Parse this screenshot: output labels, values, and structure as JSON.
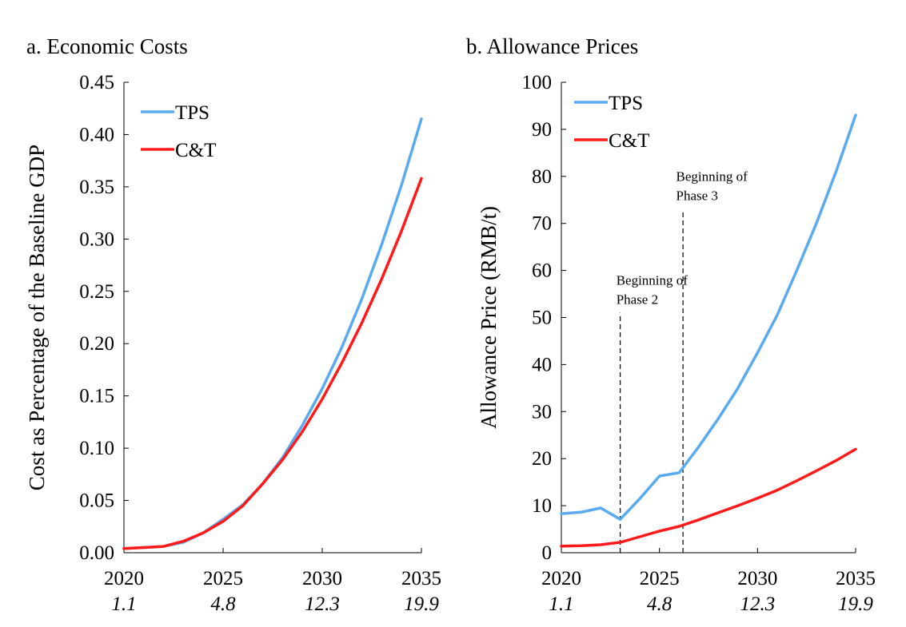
{
  "chart_data": [
    {
      "type": "line",
      "title": "a. Economic Costs",
      "xlabel": "",
      "ylabel": "Cost as Percentage of the Baseline GDP",
      "xlim": [
        2020,
        2035
      ],
      "ylim": [
        0,
        0.45
      ],
      "x_ticks": [
        {
          "value": 2020,
          "label": "2020",
          "sublabel": "1.1"
        },
        {
          "value": 2025,
          "label": "2025",
          "sublabel": "4.8"
        },
        {
          "value": 2030,
          "label": "2030",
          "sublabel": "12.3"
        },
        {
          "value": 2035,
          "label": "2035",
          "sublabel": "19.9"
        }
      ],
      "y_ticks": [
        {
          "value": 0,
          "label": "0.00"
        },
        {
          "value": 0.05,
          "label": "0.05"
        },
        {
          "value": 0.1,
          "label": "0.10"
        },
        {
          "value": 0.15,
          "label": "0.15"
        },
        {
          "value": 0.2,
          "label": "0.20"
        },
        {
          "value": 0.25,
          "label": "0.25"
        },
        {
          "value": 0.3,
          "label": "0.30"
        },
        {
          "value": 0.35,
          "label": "0.35"
        },
        {
          "value": 0.4,
          "label": "0.40"
        },
        {
          "value": 0.45,
          "label": "0.45"
        }
      ],
      "grid": false,
      "legend_position": "top-left",
      "x": [
        2020,
        2021,
        2022,
        2023,
        2024,
        2025,
        2026,
        2027,
        2028,
        2029,
        2030,
        2031,
        2032,
        2033,
        2034,
        2035
      ],
      "series": [
        {
          "name": "TPS",
          "color": "#5aaaf0",
          "values": [
            0.004,
            0.005,
            0.006,
            0.01,
            0.019,
            0.032,
            0.046,
            0.066,
            0.091,
            0.122,
            0.157,
            0.197,
            0.243,
            0.295,
            0.352,
            0.415
          ]
        },
        {
          "name": "C&T",
          "color": "#ff1a1a",
          "values": [
            0.004,
            0.005,
            0.006,
            0.011,
            0.019,
            0.03,
            0.045,
            0.066,
            0.089,
            0.116,
            0.147,
            0.182,
            0.22,
            0.262,
            0.308,
            0.358
          ]
        }
      ],
      "annotations": []
    },
    {
      "type": "line",
      "title": "b. Allowance Prices",
      "xlabel": "",
      "ylabel": "Allowance Price (RMB/t)",
      "xlim": [
        2020,
        2035
      ],
      "ylim": [
        0,
        100
      ],
      "x_ticks": [
        {
          "value": 2020,
          "label": "2020",
          "sublabel": "1.1"
        },
        {
          "value": 2025,
          "label": "2025",
          "sublabel": "4.8"
        },
        {
          "value": 2030,
          "label": "2030",
          "sublabel": "12.3"
        },
        {
          "value": 2035,
          "label": "2035",
          "sublabel": "19.9"
        }
      ],
      "y_ticks": [
        {
          "value": 0,
          "label": "0"
        },
        {
          "value": 10,
          "label": "10"
        },
        {
          "value": 20,
          "label": "20"
        },
        {
          "value": 30,
          "label": "30"
        },
        {
          "value": 40,
          "label": "40"
        },
        {
          "value": 50,
          "label": "50"
        },
        {
          "value": 60,
          "label": "60"
        },
        {
          "value": 70,
          "label": "70"
        },
        {
          "value": 80,
          "label": "80"
        },
        {
          "value": 90,
          "label": "90"
        },
        {
          "value": 100,
          "label": "100"
        }
      ],
      "grid": false,
      "legend_position": "top-left",
      "x": [
        2020,
        2021,
        2022,
        2023,
        2024,
        2025,
        2026,
        2027,
        2028,
        2029,
        2030,
        2031,
        2032,
        2033,
        2034,
        2035
      ],
      "series": [
        {
          "name": "TPS",
          "color": "#5aaaf0",
          "values": [
            8.3,
            8.6,
            9.5,
            7.1,
            11.5,
            16.3,
            17.0,
            22.5,
            28.5,
            35.0,
            42.5,
            50.5,
            60.0,
            70.0,
            81.0,
            93.0
          ]
        },
        {
          "name": "C&T",
          "color": "#ff1a1a",
          "values": [
            1.4,
            1.5,
            1.7,
            2.2,
            3.4,
            4.6,
            5.6,
            7.0,
            8.5,
            10.0,
            11.6,
            13.3,
            15.3,
            17.4,
            19.6,
            22.0
          ]
        }
      ],
      "annotations": [
        {
          "x": 2023,
          "y_from": 0,
          "y_to": 51,
          "label_lines": [
            "Beginning of",
            "Phase 2"
          ],
          "label_x": 2022.8,
          "label_y": 57
        },
        {
          "x": 2026.2,
          "y_from": 0,
          "y_to": 73,
          "label_lines": [
            "Beginning of",
            "Phase 3"
          ],
          "label_x": 2025.85,
          "label_y": 79
        }
      ]
    }
  ]
}
